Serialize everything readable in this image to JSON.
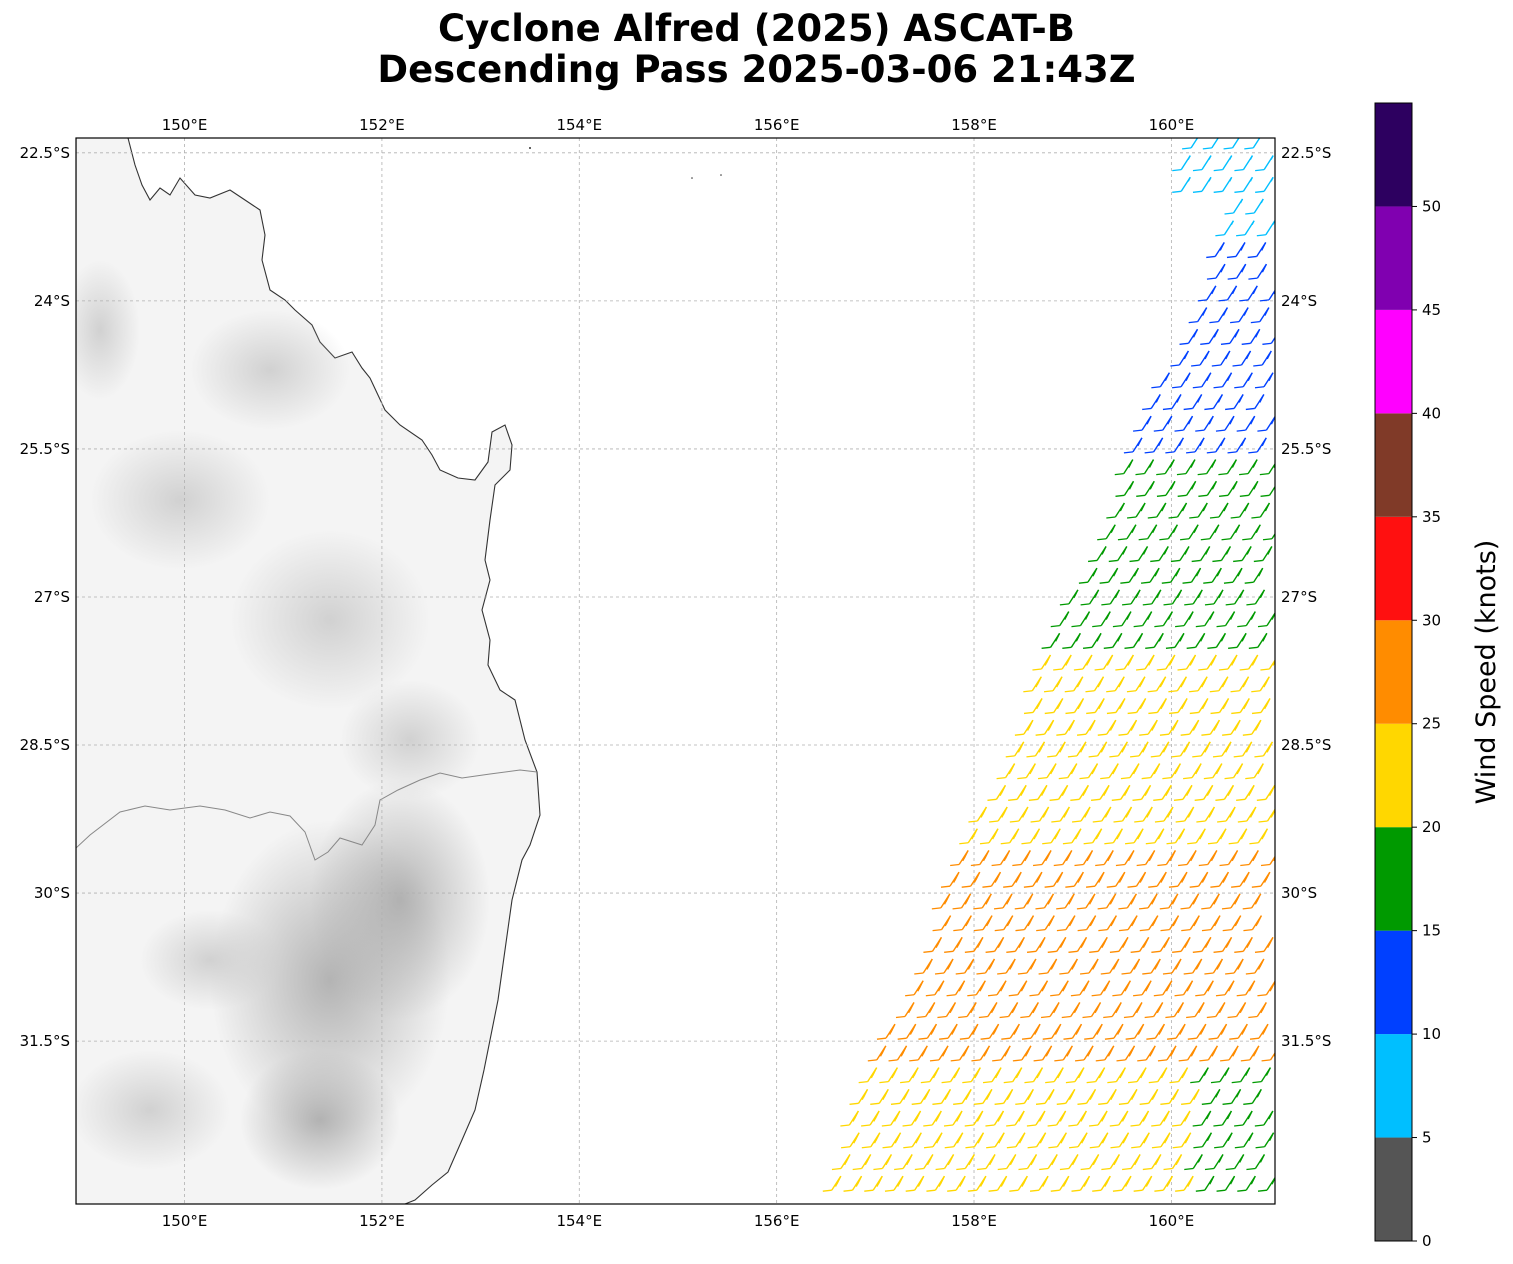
{
  "title": {
    "line1": "Cyclone Alfred (2025) ASCAT-B",
    "line2": "Descending Pass 2025-03-06 21:43Z"
  },
  "map": {
    "lon_range": [
      148.9,
      161.05
    ],
    "lat_range": [
      -33.15,
      -22.35
    ],
    "lon_ticks": [
      "150°E",
      "152°E",
      "154°E",
      "156°E",
      "158°E",
      "160°E"
    ],
    "lat_ticks": [
      "22.5°S",
      "24°S",
      "25.5°S",
      "27°S",
      "28.5°S",
      "30°S",
      "31.5°S"
    ],
    "grid": "dashed gray",
    "land": "grayscale terrain shading",
    "coastline_color": "#333333",
    "state_border_color": "#888888"
  },
  "colorbar": {
    "label": "Wind Speed (knots)",
    "ticks": [
      "0",
      "5",
      "10",
      "15",
      "20",
      "25",
      "30",
      "35",
      "40",
      "45",
      "50"
    ],
    "bins": [
      {
        "min": 0,
        "max": 5,
        "color": "#555555"
      },
      {
        "min": 5,
        "max": 10,
        "color": "#00bfff"
      },
      {
        "min": 10,
        "max": 15,
        "color": "#0040ff"
      },
      {
        "min": 15,
        "max": 20,
        "color": "#009a00"
      },
      {
        "min": 20,
        "max": 25,
        "color": "#ffd700"
      },
      {
        "min": 25,
        "max": 30,
        "color": "#ff8c00"
      },
      {
        "min": 30,
        "max": 35,
        "color": "#ff1010"
      },
      {
        "min": 35,
        "max": 40,
        "color": "#803a28"
      },
      {
        "min": 40,
        "max": 45,
        "color": "#ff00ff"
      },
      {
        "min": 45,
        "max": 50,
        "color": "#8000b0"
      },
      {
        "min": 50,
        "max": 55,
        "color": "#2d0060"
      }
    ]
  },
  "wind_field": {
    "description_bands": [
      {
        "lat_from": -22.35,
        "lat_to": -23.4,
        "speed_kt": 8
      },
      {
        "lat_from": -23.4,
        "lat_to": -25.6,
        "speed_kt": 13
      },
      {
        "lat_from": -25.6,
        "lat_to": -27.6,
        "speed_kt": 18
      },
      {
        "lat_from": -27.6,
        "lat_to": -29.6,
        "speed_kt": 22
      },
      {
        "lat_from": -29.6,
        "lat_to": -31.8,
        "speed_kt": 27
      },
      {
        "lat_from": -31.8,
        "lat_to": -33.15,
        "speed_kt": 23
      }
    ]
  }
}
